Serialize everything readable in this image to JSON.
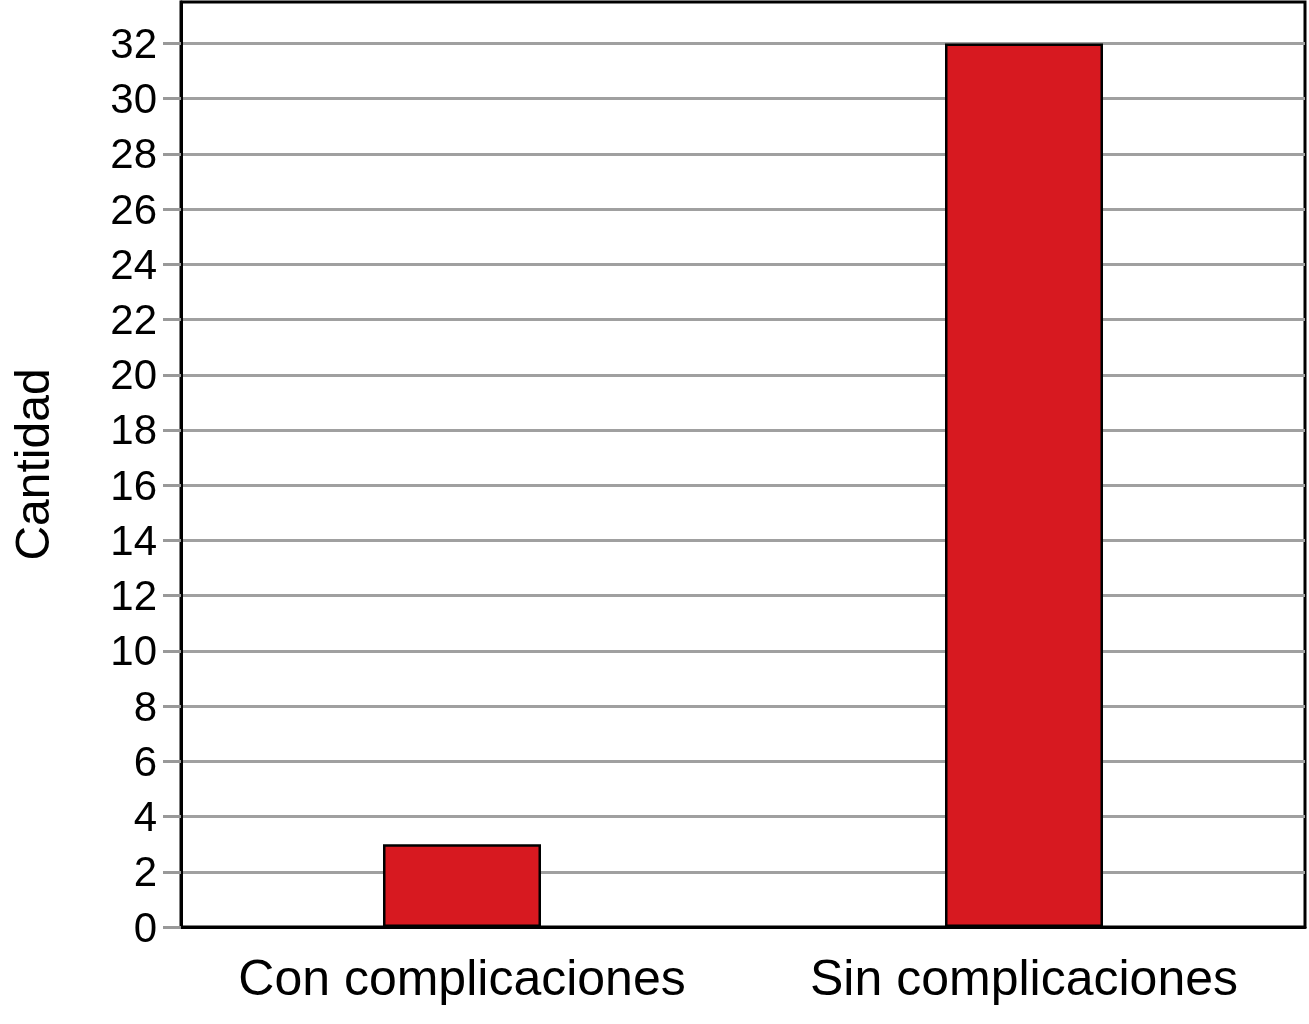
{
  "chart_data": {
    "type": "bar",
    "ylabel": "Cantidad",
    "categories": [
      "Con complicaciones",
      "Sin complicaciones"
    ],
    "values": [
      3,
      32
    ],
    "color": "#d71920",
    "ylim": [
      0,
      33.5
    ],
    "yticks": [
      0,
      2,
      4,
      6,
      8,
      10,
      12,
      14,
      16,
      18,
      20,
      22,
      24,
      26,
      28,
      30,
      32
    ],
    "grid": "y"
  }
}
